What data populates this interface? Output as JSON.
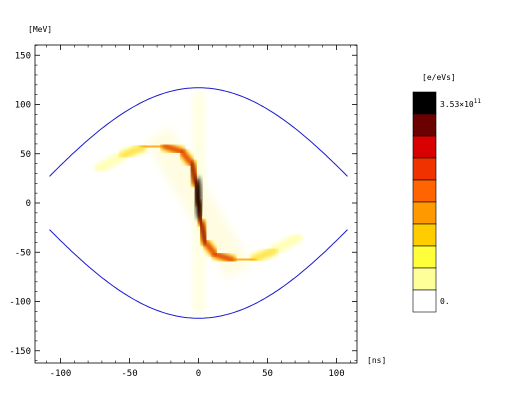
{
  "chart_data": {
    "type": "heatmap",
    "x_unit_label": "[ns]",
    "y_unit_label": "[MeV]",
    "xlim": [
      -112,
      112
    ],
    "ylim": [
      -160,
      160
    ],
    "x_ticks": [
      "-100",
      "-50",
      "0",
      "50",
      "100"
    ],
    "x_tick_values": [
      -100,
      -50,
      0,
      50,
      100
    ],
    "y_ticks": [
      "150",
      "100",
      "50",
      "0",
      "-50",
      "-100",
      "-150"
    ],
    "y_tick_values": [
      150,
      100,
      50,
      0,
      -50,
      -100,
      -150
    ],
    "grid": false,
    "separatrix": {
      "color": "#1a1ad0",
      "half_width_ns": 108,
      "peak_mev": 117,
      "edge_mev": 27
    },
    "colorbar": {
      "title": "[e/eVs]",
      "max_label": "3.53×10",
      "max_exponent": "11",
      "min_label": "0.",
      "max_value": 353000000000.0,
      "min_value": 0,
      "colors_top_to_bottom": [
        "#000000",
        "#6a0000",
        "#d80000",
        "#f03200",
        "#ff6400",
        "#ff9900",
        "#ffcc00",
        "#ffff3a",
        "#ffff9a",
        "#ffffff"
      ]
    },
    "distribution_spine": [
      [
        -72,
        35
      ],
      [
        -55,
        48
      ],
      [
        -40,
        57
      ],
      [
        -25,
        58
      ],
      [
        -12,
        52
      ],
      [
        -5,
        40
      ],
      [
        -2,
        20
      ],
      [
        0,
        0
      ],
      [
        2,
        -20
      ],
      [
        5,
        -40
      ],
      [
        12,
        -52
      ],
      [
        25,
        -58
      ],
      [
        40,
        -57
      ],
      [
        55,
        -48
      ],
      [
        72,
        -35
      ]
    ]
  }
}
